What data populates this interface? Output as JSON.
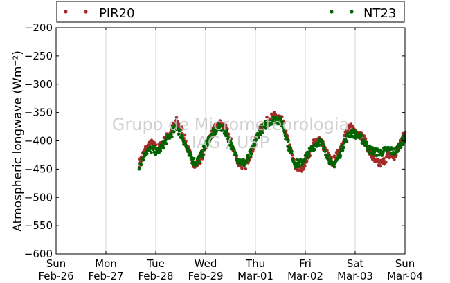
{
  "chart_data": {
    "type": "scatter",
    "ylabel": "Atmospheric longwave (Wm⁻²)",
    "ylim": [
      -600,
      -200
    ],
    "yticks": [
      -600,
      -550,
      -500,
      -450,
      -400,
      -350,
      -300,
      -250,
      -200
    ],
    "xlim": [
      "2012-02-26",
      "2012-03-04"
    ],
    "xticks": [
      {
        "day": "Sun",
        "date": "Feb-26"
      },
      {
        "day": "Mon",
        "date": "Feb-27"
      },
      {
        "day": "Tue",
        "date": "Feb-28"
      },
      {
        "day": "Wed",
        "date": "Feb-29"
      },
      {
        "day": "Thu",
        "date": "Mar-01"
      },
      {
        "day": "Fri",
        "date": "Mar-02"
      },
      {
        "day": "Sat",
        "date": "Mar-03"
      },
      {
        "day": "Sun",
        "date": "Mar-04"
      }
    ],
    "grid": "vertical",
    "legend": "top",
    "watermark": [
      "Grupo de Micrometeorologia",
      "IAG / USP"
    ],
    "series": [
      {
        "name": "PIR20",
        "color": "#a52a2a",
        "x": [
          "2012-02-27T16:00",
          "2012-02-27T19:00",
          "2012-02-27T22:00",
          "2012-02-28T01:00",
          "2012-02-28T04:00",
          "2012-02-28T07:00",
          "2012-02-28T10:00",
          "2012-02-28T13:00",
          "2012-02-28T16:00",
          "2012-02-28T19:00",
          "2012-02-28T22:00",
          "2012-02-29T01:00",
          "2012-02-29T04:00",
          "2012-02-29T07:00",
          "2012-02-29T10:00",
          "2012-02-29T13:00",
          "2012-02-29T16:00",
          "2012-02-29T19:00",
          "2012-02-29T22:00",
          "2012-03-01T01:00",
          "2012-03-01T04:00",
          "2012-03-01T07:00",
          "2012-03-01T10:00",
          "2012-03-01T13:00",
          "2012-03-01T16:00",
          "2012-03-01T19:00",
          "2012-03-01T22:00",
          "2012-03-02T01:00",
          "2012-03-02T04:00",
          "2012-03-02T07:00",
          "2012-03-02T10:00",
          "2012-03-02T13:00",
          "2012-03-02T16:00",
          "2012-03-02T19:00",
          "2012-03-02T22:00",
          "2012-03-03T01:00",
          "2012-03-03T04:00",
          "2012-03-03T07:00",
          "2012-03-03T10:00",
          "2012-03-03T13:00",
          "2012-03-03T16:00",
          "2012-03-03T19:00",
          "2012-03-03T22:00",
          "2012-03-04T00:00"
        ],
        "values": [
          -440,
          -415,
          -405,
          -415,
          -400,
          -385,
          -365,
          -385,
          -420,
          -445,
          -430,
          -400,
          -380,
          -370,
          -380,
          -410,
          -440,
          -445,
          -420,
          -390,
          -370,
          -360,
          -355,
          -365,
          -405,
          -445,
          -450,
          -430,
          -405,
          -395,
          -420,
          -440,
          -420,
          -390,
          -375,
          -385,
          -395,
          -420,
          -440,
          -440,
          -425,
          -430,
          -400,
          -385
        ]
      },
      {
        "name": "NT23",
        "color": "#006400",
        "x": [
          "2012-02-27T16:00",
          "2012-02-27T19:00",
          "2012-02-27T22:00",
          "2012-02-28T01:00",
          "2012-02-28T04:00",
          "2012-02-28T07:00",
          "2012-02-28T10:00",
          "2012-02-28T13:00",
          "2012-02-28T16:00",
          "2012-02-28T19:00",
          "2012-02-28T22:00",
          "2012-02-29T01:00",
          "2012-02-29T04:00",
          "2012-02-29T07:00",
          "2012-02-29T10:00",
          "2012-02-29T13:00",
          "2012-02-29T16:00",
          "2012-02-29T19:00",
          "2012-02-29T22:00",
          "2012-03-01T01:00",
          "2012-03-01T04:00",
          "2012-03-01T07:00",
          "2012-03-01T10:00",
          "2012-03-01T13:00",
          "2012-03-01T16:00",
          "2012-03-01T19:00",
          "2012-03-01T22:00",
          "2012-03-02T01:00",
          "2012-03-02T04:00",
          "2012-03-02T07:00",
          "2012-03-02T10:00",
          "2012-03-02T13:00",
          "2012-03-02T16:00",
          "2012-03-02T19:00",
          "2012-03-02T22:00",
          "2012-03-03T01:00",
          "2012-03-03T04:00",
          "2012-03-03T07:00",
          "2012-03-03T10:00",
          "2012-03-03T13:00",
          "2012-03-03T16:00",
          "2012-03-03T19:00",
          "2012-03-03T22:00",
          "2012-03-04T00:00"
        ],
        "values": [
          -445,
          -420,
          -415,
          -420,
          -405,
          -390,
          -375,
          -395,
          -425,
          -440,
          -425,
          -400,
          -385,
          -375,
          -385,
          -415,
          -435,
          -440,
          -420,
          -390,
          -375,
          -365,
          -360,
          -370,
          -410,
          -440,
          -440,
          -425,
          -410,
          -400,
          -420,
          -445,
          -430,
          -400,
          -385,
          -390,
          -400,
          -415,
          -420,
          -420,
          -415,
          -420,
          -405,
          -395
        ]
      }
    ]
  }
}
